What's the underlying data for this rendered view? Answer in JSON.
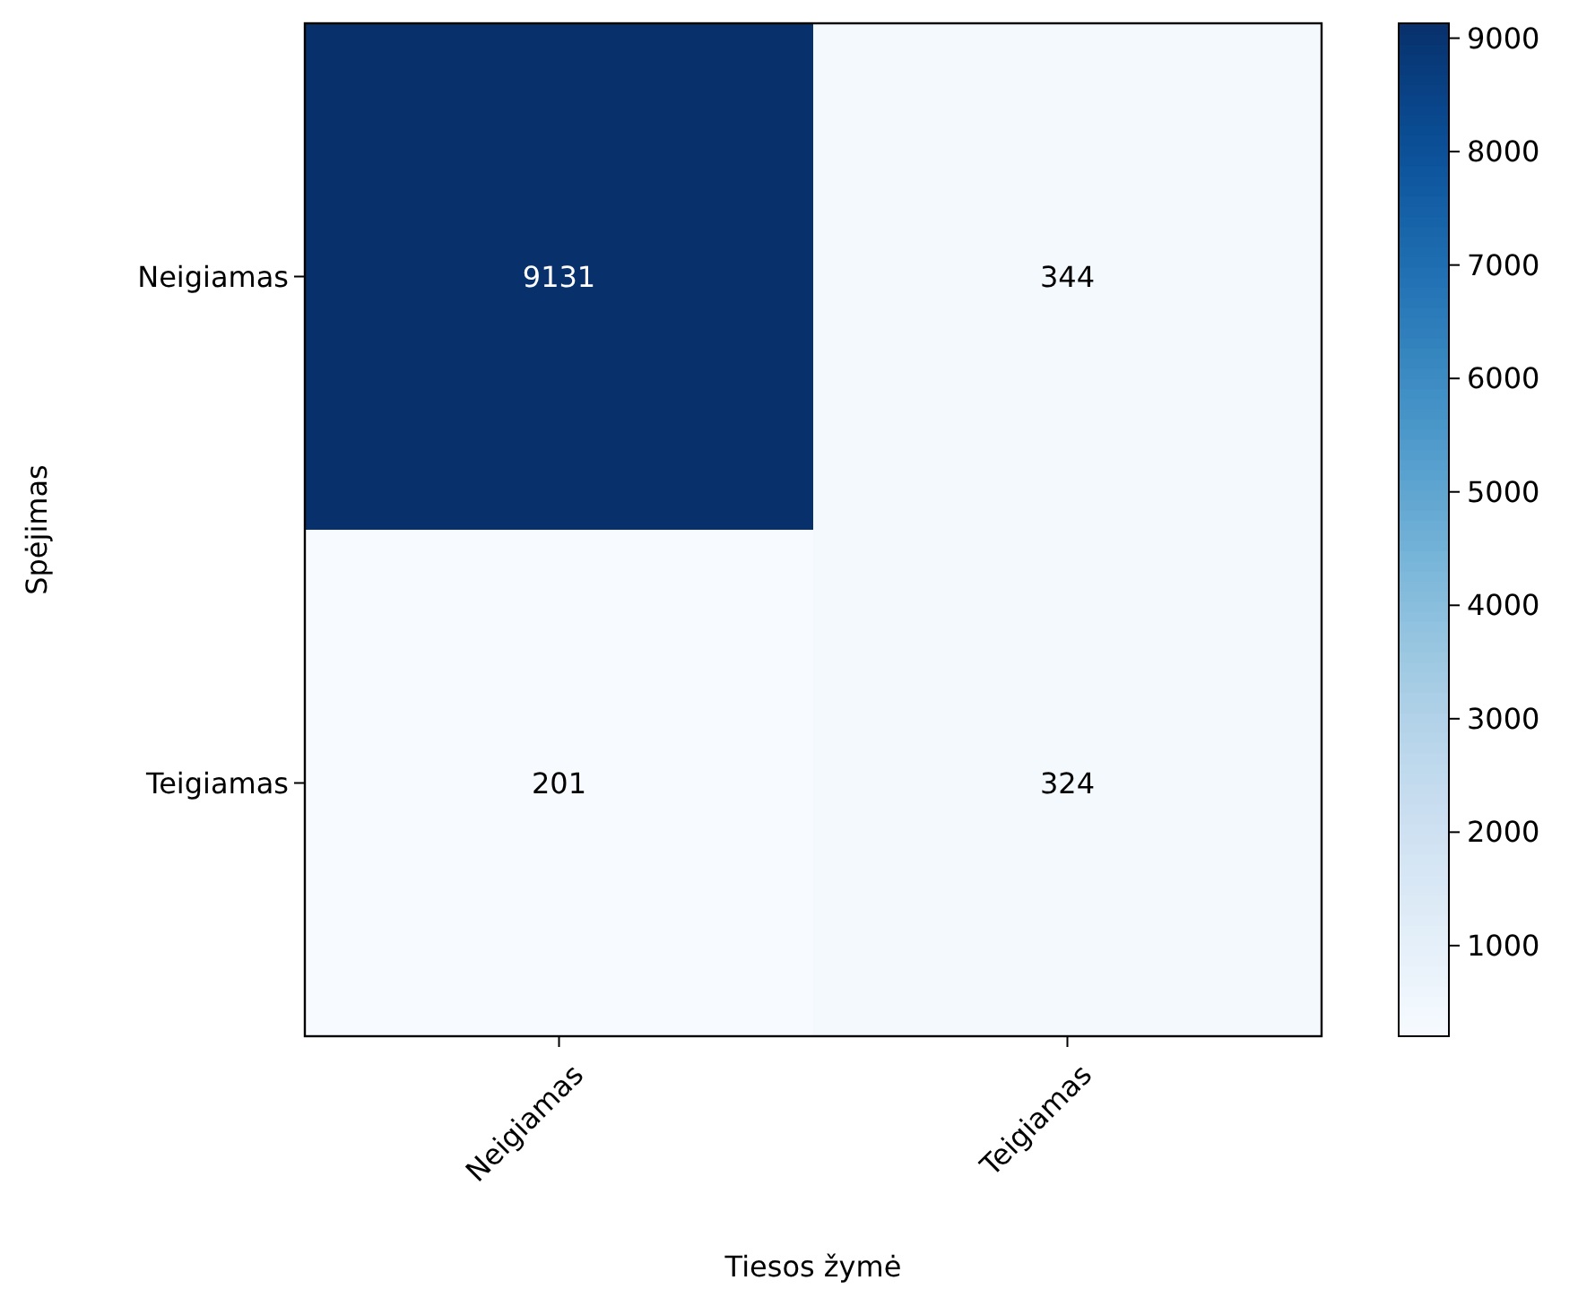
{
  "chart_data": {
    "type": "heatmap",
    "xlabel": "Tiesos žymė",
    "ylabel": "Spėjimas",
    "categories": [
      "Neigiamas",
      "Teigiamas"
    ],
    "y_categories": [
      "Neigiamas",
      "Teigiamas"
    ],
    "cells": [
      [
        9131,
        344
      ],
      [
        201,
        324
      ]
    ],
    "clim": [
      201,
      9131
    ],
    "cticks": [
      1000,
      2000,
      3000,
      4000,
      5000,
      6000,
      7000,
      8000,
      9000
    ],
    "data_labels": true
  }
}
